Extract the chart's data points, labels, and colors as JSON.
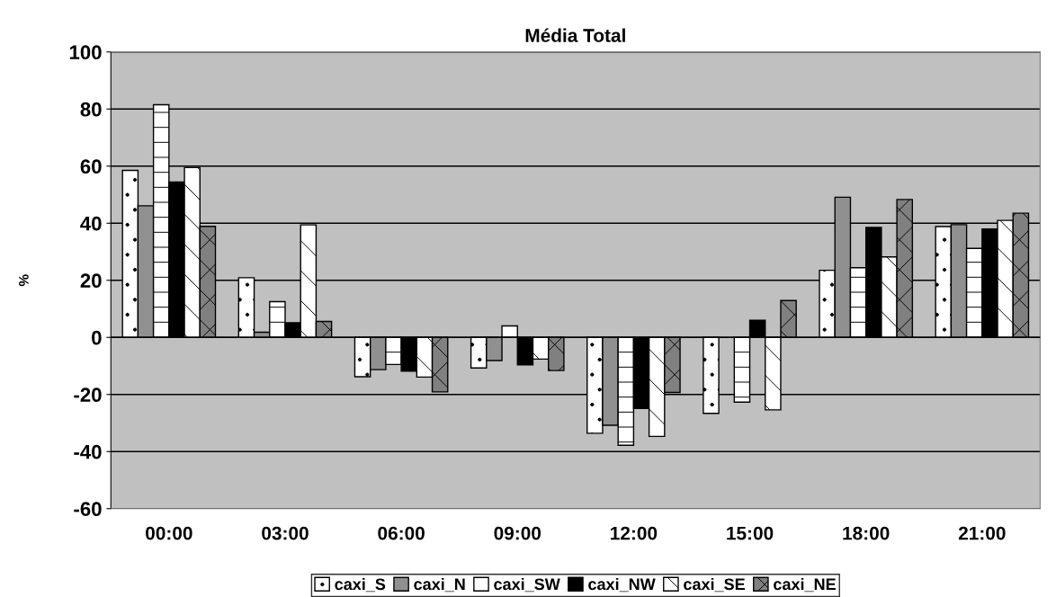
{
  "chart_data": {
    "type": "bar",
    "title": "Média Total",
    "ylabel": "%",
    "categories": [
      "00:00",
      "03:00",
      "06:00",
      "09:00",
      "12:00",
      "15:00",
      "18:00",
      "21:00"
    ],
    "series": [
      {
        "name": "caxi_S",
        "color": "#ffffff",
        "values": [
          58.5,
          20.9,
          -13.8,
          -10.7,
          -33.6,
          -26.6,
          23.5,
          38.8
        ]
      },
      {
        "name": "caxi_N",
        "color": "#909090",
        "values": [
          46.1,
          1.8,
          -11.3,
          -8.1,
          -30.8,
          null,
          49.1,
          39.5
        ]
      },
      {
        "name": "caxi_SW",
        "color": "#ffffff",
        "values": [
          81.5,
          12.5,
          -9.5,
          4.0,
          -37.8,
          -22.7,
          24.4,
          31.2
        ]
      },
      {
        "name": "caxi_NW",
        "color": "#000000",
        "values": [
          54.4,
          5.1,
          -11.8,
          -9.6,
          -24.9,
          6.0,
          38.5,
          38.0
        ]
      },
      {
        "name": "caxi_SE",
        "color": "#ffffff",
        "values": [
          59.5,
          39.4,
          -13.9,
          -7.6,
          -34.7,
          -25.4,
          28.2,
          41.0
        ]
      },
      {
        "name": "caxi_NE",
        "color": "#808080",
        "values": [
          38.9,
          5.6,
          -19.1,
          -11.6,
          -19.3,
          12.9,
          48.3,
          43.5
        ]
      }
    ],
    "ylim": [
      -60,
      100
    ],
    "yticks": [
      -60,
      -40,
      -20,
      0,
      20,
      40,
      60,
      80,
      100
    ],
    "grid": "y",
    "legend": "bottom"
  }
}
